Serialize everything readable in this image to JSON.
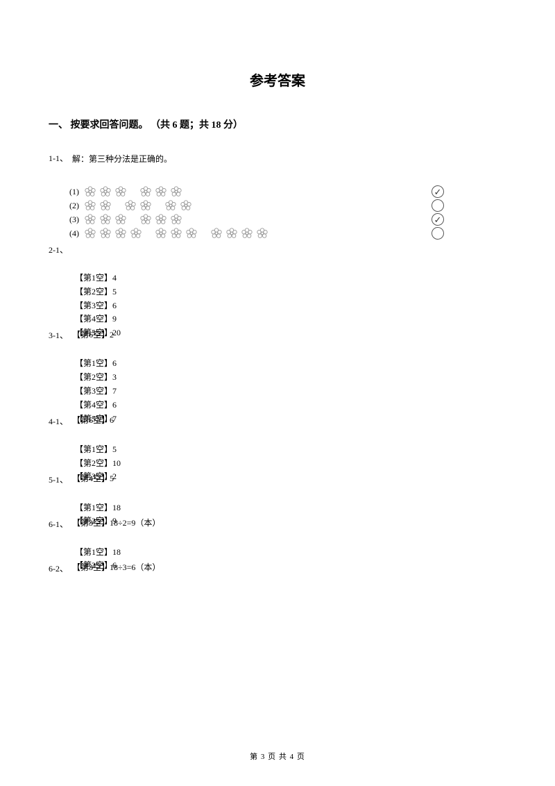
{
  "title": "参考答案",
  "section": {
    "label": "一、 按要求回答问题。 （共 6 题；共 18 分）"
  },
  "q1": {
    "num": "1-1、",
    "text": "解：第三种分法是正确的。"
  },
  "q2": {
    "num": "2-1、",
    "rows": [
      {
        "label": "(1)",
        "groups": [
          3,
          3
        ],
        "checked": true
      },
      {
        "label": "(2)",
        "groups": [
          2,
          2,
          2
        ],
        "checked": false
      },
      {
        "label": "(3)",
        "groups": [
          3,
          3
        ],
        "checked": true
      },
      {
        "label": "(4)",
        "groups": [
          4,
          3,
          4
        ],
        "checked": false
      }
    ]
  },
  "q3": {
    "num": "3-1、",
    "blanks": [
      "【第1空】4",
      "【第2空】5",
      "【第3空】6",
      "【第4空】9",
      "【第5空】20",
      "【第6空】2"
    ]
  },
  "q4": {
    "num": "4-1、",
    "blanks": [
      "【第1空】6",
      "【第2空】3",
      "【第3空】7",
      "【第4空】6",
      "【第5空】7",
      "【第6空】6"
    ]
  },
  "q5": {
    "num": "5-1、",
    "blanks": [
      "【第1空】5",
      "【第2空】10",
      "【第3空】2",
      "【第4空】5"
    ]
  },
  "q6a": {
    "num": "6-1、",
    "blanks": [
      "【第1空】18",
      "【第2空】9",
      "【第3空】18÷2=9（本）"
    ]
  },
  "q6b": {
    "num": "6-2、",
    "blanks": [
      "【第1空】18",
      "【第2空】6",
      "【第3空】18÷3=6（本）"
    ]
  },
  "footer": "第 3 页 共 4 页",
  "colors": {
    "text": "#000000",
    "flower_stroke": "#888888",
    "circle_stroke": "#555555"
  }
}
